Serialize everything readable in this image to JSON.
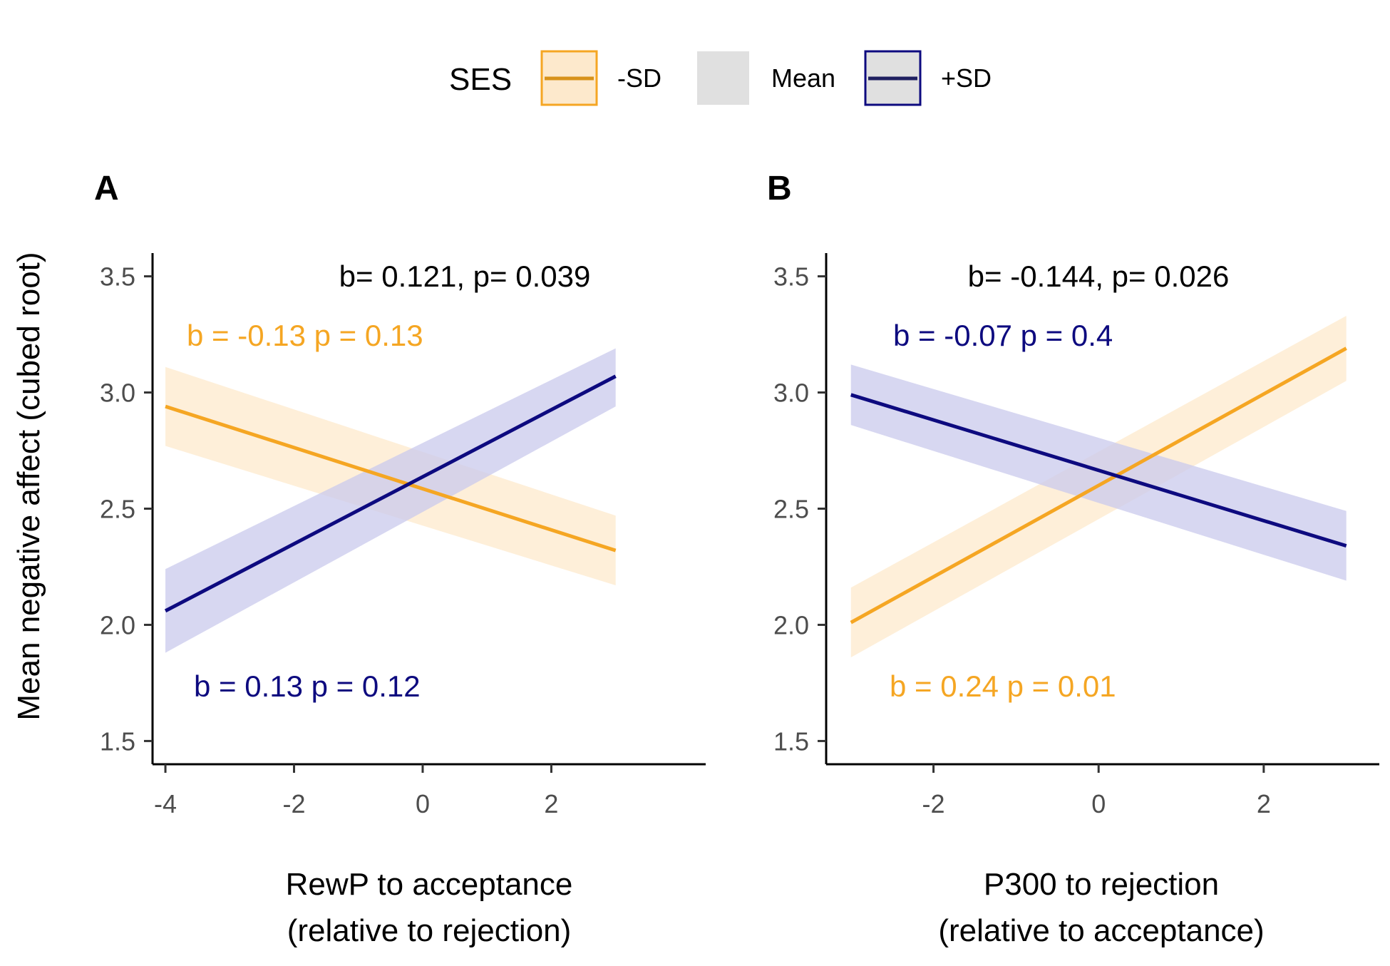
{
  "legend": {
    "title": "SES",
    "entries": [
      {
        "label": "-SD",
        "color": "#F5A623",
        "kind": "line"
      },
      {
        "label": "Mean",
        "color": "#E0E0E0",
        "kind": "fill"
      },
      {
        "label": "+SD",
        "color": "#0D0A7F",
        "kind": "line"
      }
    ]
  },
  "y_axis_title": "Mean negative affect (cubed root)",
  "colors": {
    "low": "#F5A623",
    "low_band": "#FDE9CC",
    "high": "#0D0A7F",
    "high_band": "#C9C9EC",
    "axis": "#000000",
    "tick_text": "#4d4d4d"
  },
  "chart_data": [
    {
      "type": "line",
      "panel_label": "A",
      "xlabel_line1": "RewP to acceptance",
      "xlabel_line2": "(relative to rejection)",
      "ylabel": "Mean negative affect (cubed root)",
      "xlim": [
        -4.2,
        4.4
      ],
      "ylim": [
        1.4,
        3.6
      ],
      "xticks": [
        -4,
        -2,
        0,
        2
      ],
      "xtick_labels": [
        "-4",
        "-2",
        "0",
        "2"
      ],
      "yticks": [
        1.5,
        2.0,
        2.5,
        3.0,
        3.5
      ],
      "ytick_labels": [
        "1.5",
        "2.0",
        "2.5",
        "3.0",
        "3.5"
      ],
      "grid": false,
      "annotation_top": "b= 0.121, p= 0.039",
      "series": [
        {
          "name": "-SD",
          "x": [
            -4,
            3
          ],
          "y": [
            2.94,
            2.32
          ],
          "band_lower": [
            2.77,
            2.17
          ],
          "band_upper": [
            3.11,
            2.47
          ],
          "annotation": "b = -0.13 p = 0.13"
        },
        {
          "name": "+SD",
          "x": [
            -4,
            3
          ],
          "y": [
            2.06,
            3.07
          ],
          "band_lower": [
            1.88,
            2.94
          ],
          "band_upper": [
            2.24,
            3.19
          ],
          "annotation": "b = 0.13 p = 0.12"
        }
      ]
    },
    {
      "type": "line",
      "panel_label": "B",
      "xlabel_line1": "P300 to rejection",
      "xlabel_line2": "(relative to acceptance)",
      "ylabel": "Mean negative affect (cubed root)",
      "xlim": [
        -3.3,
        3.4
      ],
      "ylim": [
        1.4,
        3.6
      ],
      "xticks": [
        -2,
        0,
        2
      ],
      "xtick_labels": [
        "-2",
        "0",
        "2"
      ],
      "yticks": [
        1.5,
        2.0,
        2.5,
        3.0,
        3.5
      ],
      "ytick_labels": [
        "1.5",
        "2.0",
        "2.5",
        "3.0",
        "3.5"
      ],
      "grid": false,
      "annotation_top": "b= -0.144, p= 0.026",
      "series": [
        {
          "name": "-SD",
          "x": [
            -3,
            3
          ],
          "y": [
            2.01,
            3.19
          ],
          "band_lower": [
            1.86,
            3.05
          ],
          "band_upper": [
            2.16,
            3.33
          ],
          "annotation": "b = 0.24 p = 0.01"
        },
        {
          "name": "+SD",
          "x": [
            -3,
            3
          ],
          "y": [
            2.99,
            2.34
          ],
          "band_lower": [
            2.86,
            2.19
          ],
          "band_upper": [
            3.12,
            2.49
          ],
          "annotation": "b = -0.07 p = 0.4"
        }
      ]
    }
  ]
}
